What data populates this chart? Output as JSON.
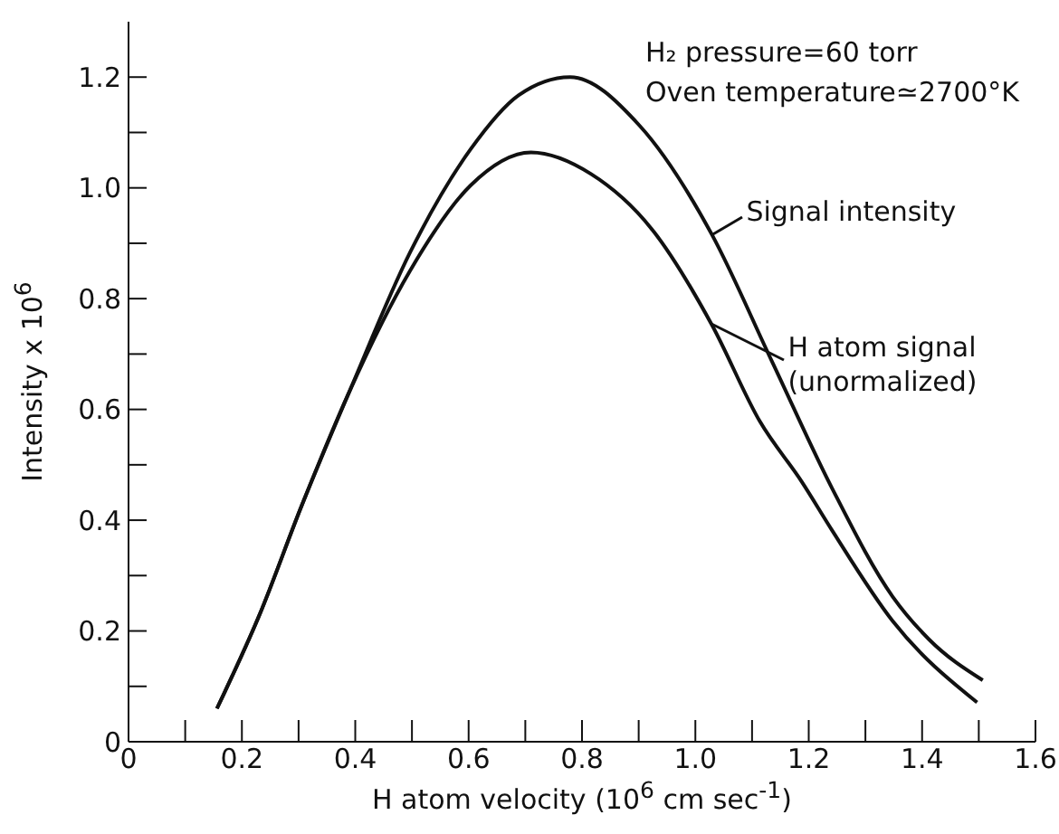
{
  "chart_data": {
    "type": "line",
    "xlabel": "H atom velocity (10$^{6}$ cm sec$^{-1}$)",
    "ylabel": "Intensity x 10$^{6}$",
    "annotations": [
      "H₂ pressure=60 torr",
      "Oven temperature≃2700°K"
    ],
    "series": [
      {
        "name": "Signal intensity",
        "color": "#111111",
        "x": [
          0.156,
          0.231,
          0.305,
          0.39,
          0.497,
          0.603,
          0.688,
          0.779,
          0.901,
          1.029,
          1.135,
          1.241,
          1.348,
          1.412,
          1.507
        ],
        "values": [
          0.06,
          0.229,
          0.425,
          0.633,
          0.884,
          1.069,
          1.167,
          1.2,
          1.113,
          0.916,
          0.687,
          0.458,
          0.262,
          0.185,
          0.111
        ]
      },
      {
        "name": "H atom signal (unormalized)",
        "color": "#111111",
        "x": [
          0.156,
          0.231,
          0.305,
          0.39,
          0.497,
          0.603,
          0.71,
          0.816,
          0.922,
          1.029,
          1.114,
          1.188,
          1.241,
          1.348,
          1.497
        ],
        "values": [
          0.06,
          0.229,
          0.425,
          0.633,
          0.851,
          1.004,
          1.064,
          1.025,
          0.927,
          0.753,
          0.578,
          0.469,
          0.382,
          0.218,
          0.071
        ]
      }
    ],
    "xlim": [
      0,
      1.6
    ],
    "xticks": [
      0,
      {
        "value": 0.1,
        "label": null
      },
      0.2,
      {
        "value": 0.3,
        "label": null
      },
      0.4,
      {
        "value": 0.5,
        "label": null
      },
      0.6,
      {
        "value": 0.7,
        "label": null
      },
      0.8,
      {
        "value": 0.9,
        "label": null
      },
      {
        "value": 1.0,
        "label": "1.0"
      },
      {
        "value": 1.1,
        "label": null
      },
      1.2,
      {
        "value": 1.3,
        "label": null
      },
      1.4,
      {
        "value": 1.5,
        "label": null
      },
      1.6
    ],
    "ylim": [
      0,
      1.3
    ],
    "yticks": [
      0,
      {
        "value": 0.1,
        "label": null
      },
      0.2,
      {
        "value": 0.3,
        "label": null
      },
      0.4,
      {
        "value": 0.5,
        "label": null
      },
      0.6,
      {
        "value": 0.7,
        "label": null
      },
      0.8,
      {
        "value": 0.9,
        "label": null
      },
      {
        "value": 1.0,
        "label": "1.0"
      },
      {
        "value": 1.1,
        "label": null
      },
      1.2
    ],
    "grid": false,
    "legend": "right",
    "marker": "none",
    "line_style": "solid"
  }
}
